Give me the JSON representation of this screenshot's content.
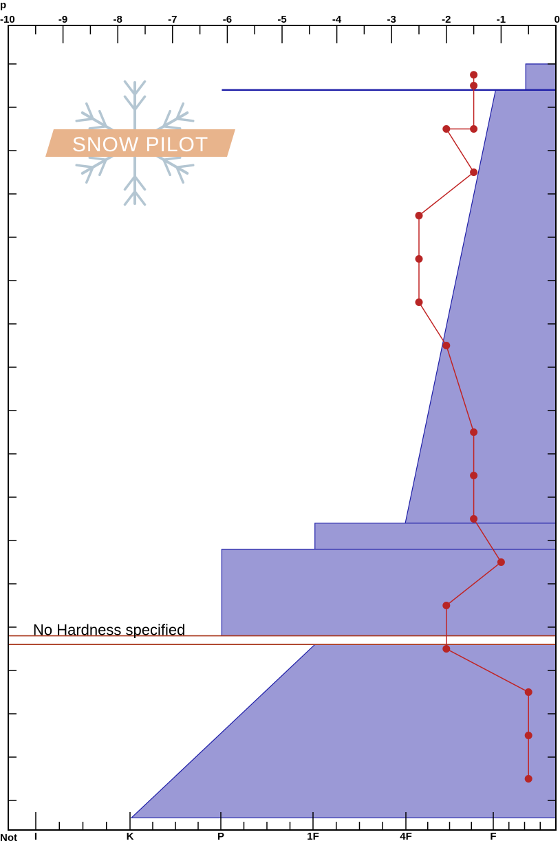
{
  "header": {
    "top_left_text": "p",
    "bottom_left_text": "Not"
  },
  "logo": {
    "text": "SNOW PILOT",
    "icon": "snowflake-icon",
    "color_text_band": "#e8b48c",
    "color_flake": "#b4c6d2"
  },
  "colors": {
    "hardness_fill": "#9b99d6",
    "hardness_stroke": "#1f1fa8",
    "temp_line": "#c02424",
    "temp_point": "#b82525",
    "flag_stroke": "#a8361b",
    "flag_fill": "#ffffff"
  },
  "annotation": {
    "no_hardness": "No Hardness specified"
  },
  "chart_data": {
    "type": "line",
    "title": "",
    "grid": false,
    "temperature_axis": {
      "position": "top",
      "range": [
        -10,
        0
      ],
      "tick_labels": [
        "-10",
        "-9",
        "-8",
        "-7",
        "-6",
        "-5",
        "-4",
        "-3",
        "-2",
        "-1",
        "0"
      ]
    },
    "hardness_axis": {
      "position": "bottom",
      "tick_labels": [
        "I",
        "K",
        "P",
        "1F",
        "4F",
        "F"
      ]
    },
    "depth_axis": {
      "range": [
        0,
        150
      ],
      "inverted": true,
      "tick_step": 10
    },
    "series": [
      {
        "kind": "temperature-profile",
        "points": [
          {
            "temp": -1.5,
            "depth": 2.5
          },
          {
            "temp": -1.5,
            "depth": 5
          },
          {
            "temp": -1.5,
            "depth": 15
          },
          {
            "temp": -2.0,
            "depth": 15
          },
          {
            "temp": -1.5,
            "depth": 25
          },
          {
            "temp": -2.5,
            "depth": 35
          },
          {
            "temp": -2.5,
            "depth": 45
          },
          {
            "temp": -2.5,
            "depth": 55
          },
          {
            "temp": -2.0,
            "depth": 65
          },
          {
            "temp": -1.5,
            "depth": 85
          },
          {
            "temp": -1.5,
            "depth": 95
          },
          {
            "temp": -1.5,
            "depth": 105
          },
          {
            "temp": -1.0,
            "depth": 115
          },
          {
            "temp": -2.0,
            "depth": 125
          },
          {
            "temp": -2.0,
            "depth": 135
          },
          {
            "temp": -0.5,
            "depth": 145
          },
          {
            "temp": -0.5,
            "depth": 155
          },
          {
            "temp": -0.5,
            "depth": 165
          }
        ]
      },
      {
        "kind": "hardness-profile",
        "layers": [
          {
            "top": 0,
            "bottom": 6,
            "hardness_top": -0.55,
            "hardness_bottom": -0.55
          },
          {
            "top": 6,
            "bottom": 106,
            "hardness_top": -1.1,
            "hardness_bottom": -2.75
          },
          {
            "top": 106,
            "bottom": 112,
            "hardness_top": -4.4,
            "hardness_bottom": -4.4
          },
          {
            "top": 112,
            "bottom": 132,
            "hardness_top": -6.1,
            "hardness_bottom": -6.1
          },
          {
            "top": 134,
            "bottom": 174,
            "hardness_top": -4.4,
            "hardness_bottom": -7.75
          }
        ],
        "boundary_line": {
          "depth": 6,
          "from": -6.1,
          "to": 0
        }
      }
    ],
    "no_hardness_band": {
      "top": 132,
      "bottom": 134
    }
  }
}
